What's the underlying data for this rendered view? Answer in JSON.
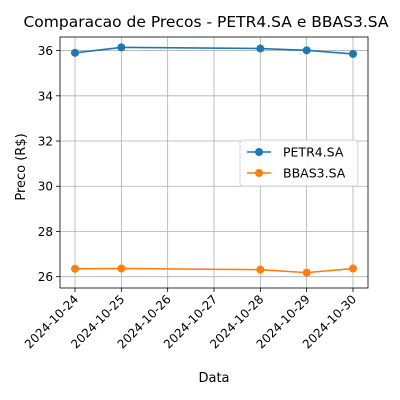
{
  "chart_data": {
    "type": "line",
    "title": "Comparacao de Precos - PETR4.SA e BBAS3.SA",
    "xlabel": "Data",
    "ylabel": "Preco (R$)",
    "x": [
      "2024-10-24",
      "2024-10-25",
      "2024-10-28",
      "2024-10-29",
      "2024-10-30"
    ],
    "x_ticks": [
      "2024-10-24",
      "2024-10-25",
      "2024-10-26",
      "2024-10-27",
      "2024-10-28",
      "2024-10-29",
      "2024-10-30"
    ],
    "y_ticks": [
      26,
      28,
      30,
      32,
      34,
      36
    ],
    "xlim": [
      "2024-10-24",
      "2024-10-30"
    ],
    "ylim": [
      25.5,
      36.6
    ],
    "grid": true,
    "legend_position": "center-right",
    "series": [
      {
        "name": "PETR4.SA",
        "color": "#1f77b4",
        "values": [
          35.9,
          36.14,
          36.09,
          36.01,
          35.85
        ]
      },
      {
        "name": "BBAS3.SA",
        "color": "#ff7f0e",
        "values": [
          26.35,
          26.36,
          26.31,
          26.18,
          26.36
        ]
      }
    ]
  }
}
